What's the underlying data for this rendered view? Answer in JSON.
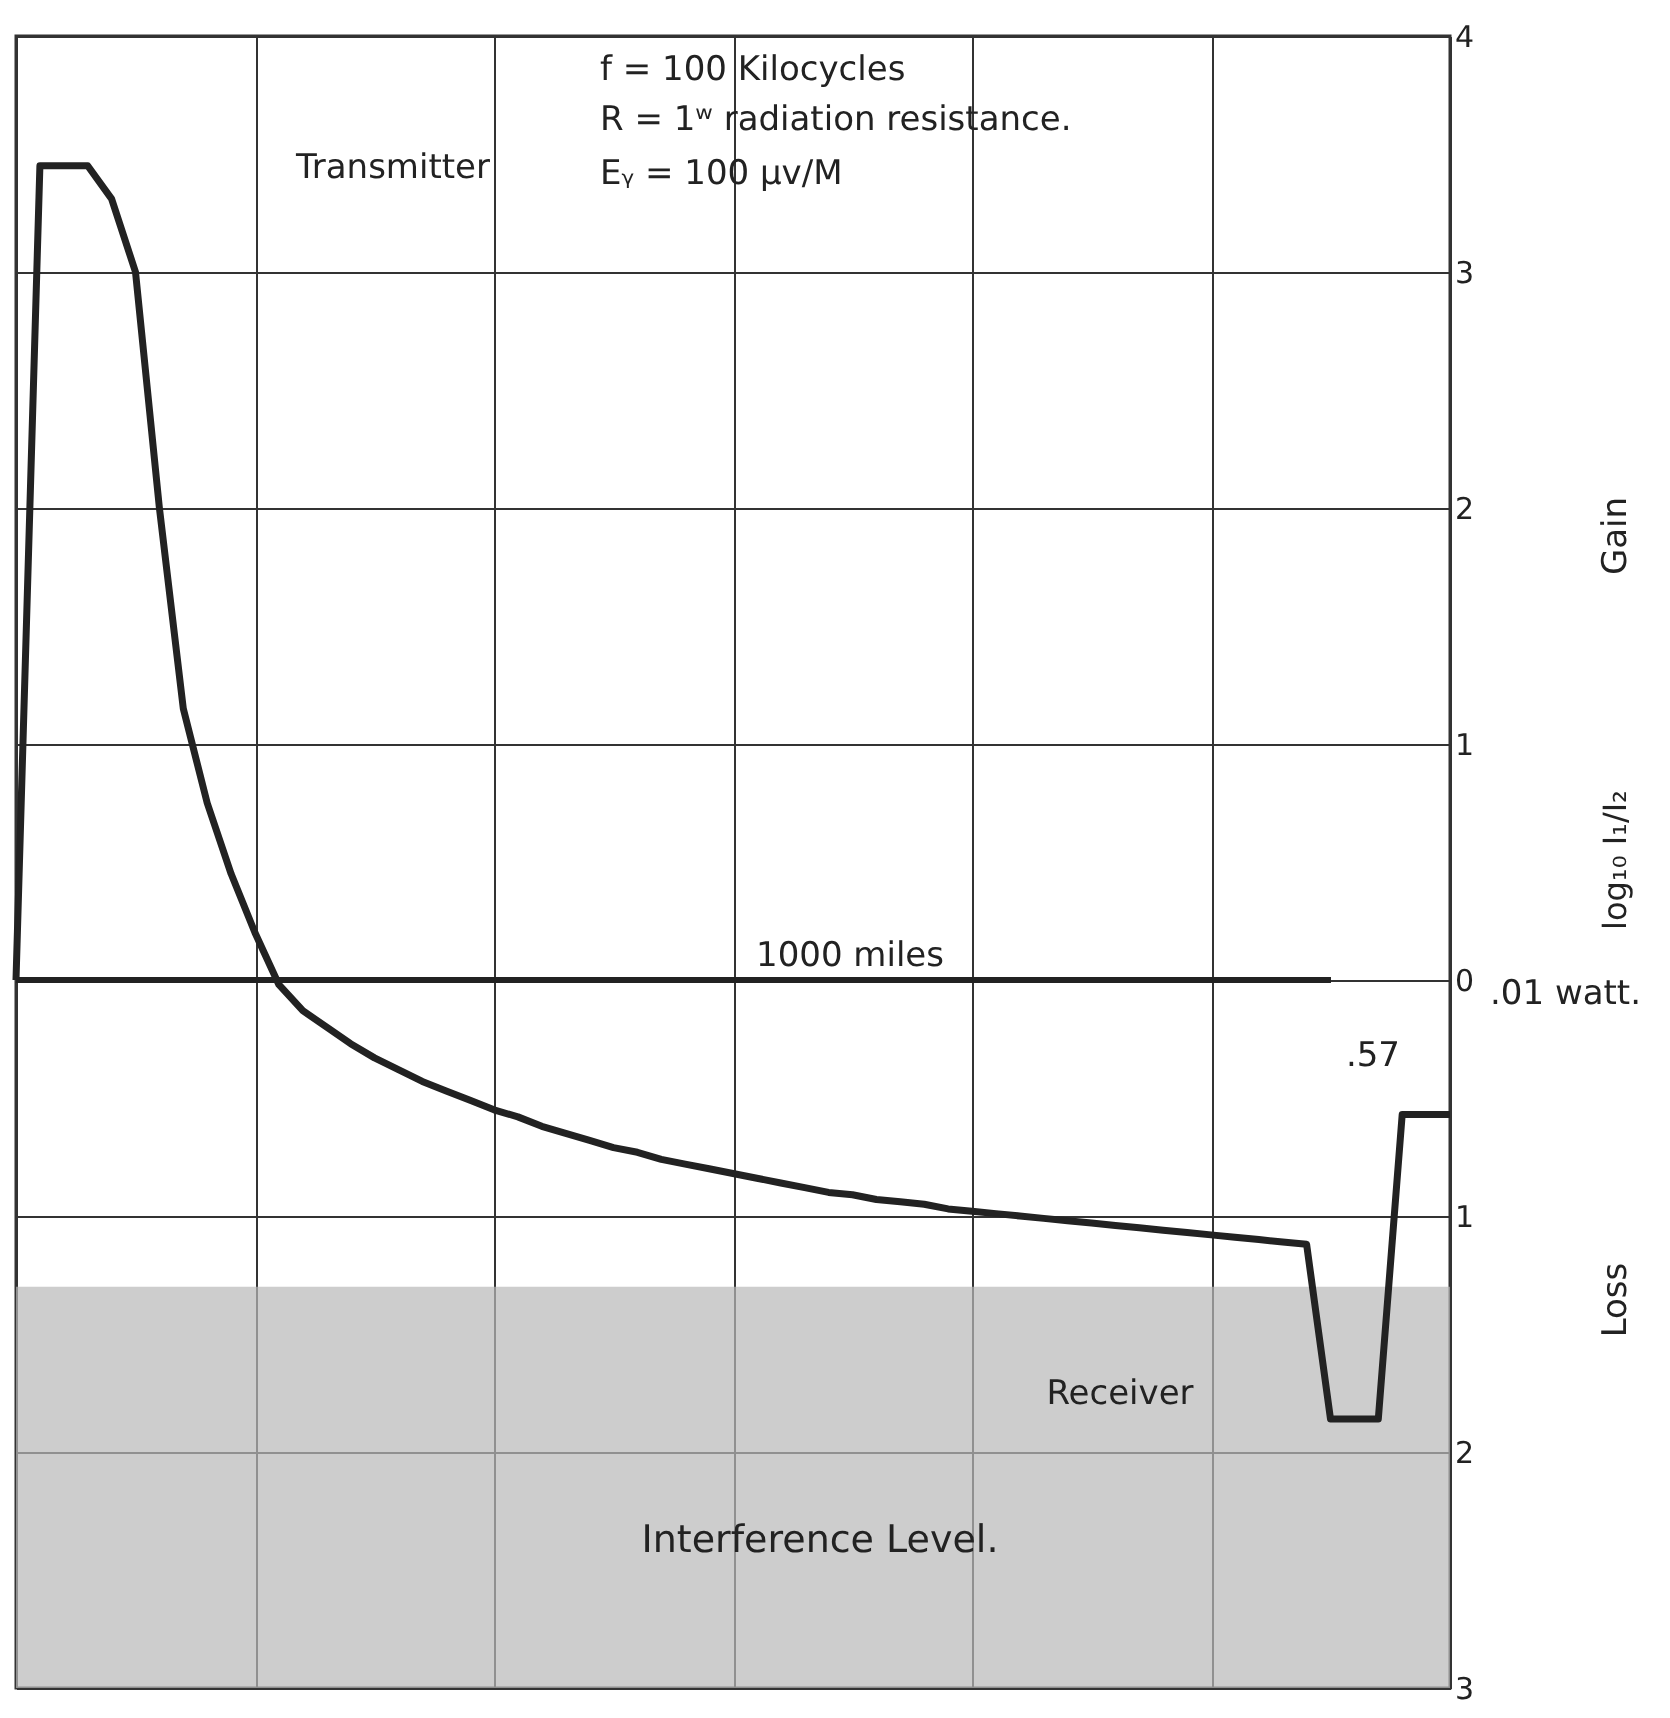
{
  "chart_data": {
    "type": "line",
    "categories": [
      null,
      null,
      null,
      null,
      null,
      null,
      null,
      null,
      null,
      null,
      null,
      null,
      null,
      null,
      null,
      null,
      null,
      null,
      null,
      null,
      null,
      null,
      null,
      null,
      null,
      null,
      null,
      null,
      null,
      null,
      null,
      null,
      null,
      null,
      null,
      null,
      null,
      null,
      null,
      null,
      null,
      null,
      null,
      null,
      null,
      null,
      null,
      null,
      null,
      null,
      null,
      null,
      null,
      null,
      null,
      null,
      null,
      null,
      null,
      null,
      null
    ],
    "series": [
      {
        "color": "#222222",
        "values": [
          0,
          3.45,
          3.45,
          3.45,
          3.31,
          3.0,
          2.0,
          1.15,
          0.75,
          0.45,
          0.2,
          -0.02,
          -0.13,
          -0.2,
          -0.27,
          -0.33,
          -0.38,
          -0.43,
          -0.47,
          -0.51,
          -0.55,
          -0.58,
          -0.62,
          -0.65,
          -0.68,
          -0.71,
          -0.73,
          -0.76,
          -0.78,
          -0.8,
          -0.82,
          -0.84,
          -0.86,
          -0.88,
          -0.9,
          -0.91,
          -0.93,
          -0.94,
          -0.95,
          -0.97,
          -0.98,
          -0.99,
          -1.0,
          -1.01,
          -1.02,
          -1.03,
          -1.04,
          -1.05,
          -1.06,
          -1.07,
          -1.08,
          -1.09,
          -1.1,
          -1.11,
          -1.12,
          -1.86,
          -1.86,
          -1.86,
          -0.57,
          -0.57,
          -0.57
        ]
      }
    ],
    "ylim": [
      -3,
      4
    ],
    "yticks": [
      {
        "value": -3,
        "label": "3"
      },
      {
        "value": -2,
        "label": "2"
      },
      {
        "value": -1,
        "label": "1"
      },
      0,
      1,
      2,
      3,
      4
    ],
    "ylabel": "log₁₀ I₁/I₂",
    "tick_labels": "y",
    "grid": true,
    "marker": "none",
    "line_style": "solid",
    "ref_lines": [
      {
        "axis": "y",
        "value": 0,
        "color": "#222222"
      }
    ],
    "bands": [
      {
        "axis": "y",
        "from": -1.3,
        "to": -3,
        "label": "Interference Level.",
        "color": "#b8b8b8"
      }
    ],
    "annotations": [
      "Transmitter",
      "f = 100 Kilocycles",
      "R = 1ʷ radiation resistance.",
      "Eᵧ = 100 μv/M",
      "1000 miles",
      ".57",
      "Receiver",
      "Gain",
      "Loss",
      ".01 watt."
    ]
  }
}
